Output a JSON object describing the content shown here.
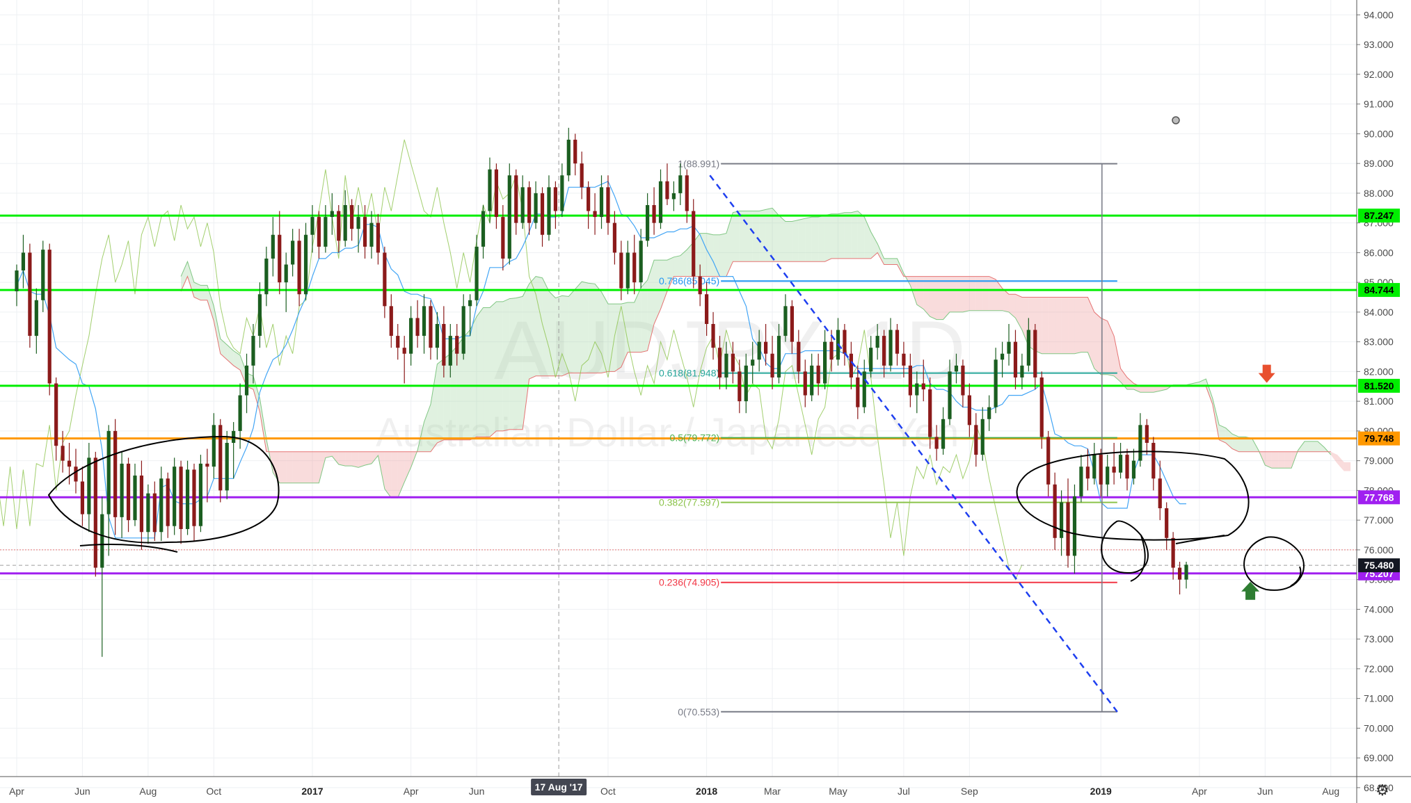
{
  "chart_data": {
    "type": "candlestick",
    "watermark": {
      "symbol": "AUDJPY, 1D",
      "name": "Australian Dollar / Japanese Yen"
    },
    "y_axis": {
      "side": "right",
      "range": [
        67.6,
        94.4
      ],
      "ticks": [
        "68.000",
        "69.000",
        "70.000",
        "71.000",
        "72.000",
        "73.000",
        "74.000",
        "75.000",
        "76.000",
        "77.000",
        "78.000",
        "79.000",
        "80.000",
        "81.000",
        "82.000",
        "83.000",
        "84.000",
        "85.000",
        "86.000",
        "87.000",
        "88.000",
        "89.000",
        "90.000",
        "91.000",
        "92.000",
        "93.000",
        "94.000"
      ]
    },
    "x_axis": {
      "ticks": [
        {
          "label": "Apr",
          "t": 0.0
        },
        {
          "label": "Jun",
          "t": 2.0
        },
        {
          "label": "Aug",
          "t": 4.0
        },
        {
          "label": "Oct",
          "t": 6.0
        },
        {
          "label": "2017",
          "t": 9.0
        },
        {
          "label": "Apr",
          "t": 12.0
        },
        {
          "label": "Jun",
          "t": 14.0
        },
        {
          "label": "Oct",
          "t": 18.0
        },
        {
          "label": "2018",
          "t": 21.0
        },
        {
          "label": "Mar",
          "t": 23.0
        },
        {
          "label": "May",
          "t": 25.0
        },
        {
          "label": "Jul",
          "t": 27.0
        },
        {
          "label": "Sep",
          "t": 29.0
        },
        {
          "label": "2019",
          "t": 33.0
        },
        {
          "label": "Apr",
          "t": 36.0
        },
        {
          "label": "Jun",
          "t": 38.0
        },
        {
          "label": "Aug",
          "t": 40.0
        }
      ],
      "crosshair": {
        "label": "17 Aug '17",
        "t": 16.5
      }
    },
    "horizontal_lines": [
      {
        "value": 87.247,
        "label": "87.247",
        "color": "#00ee00"
      },
      {
        "value": 84.744,
        "label": "84.744",
        "color": "#00ee00"
      },
      {
        "value": 81.52,
        "label": "81.520",
        "color": "#00ee00"
      },
      {
        "value": 79.748,
        "label": "79.748",
        "color": "#ff9800"
      },
      {
        "value": 77.768,
        "label": "77.768",
        "color": "#a020f0"
      },
      {
        "value": 75.207,
        "label": "75.207",
        "color": "#a020f0"
      }
    ],
    "current_price": {
      "value": 75.48,
      "label": "75.480"
    },
    "fibonacci": {
      "t_start": 20.8,
      "t_end": 33.5,
      "levels": [
        {
          "label": "1(88.991)",
          "value": 88.991,
          "color": "#787b86"
        },
        {
          "label": "0.786(85.045)",
          "value": 85.045,
          "color": "#2196f3"
        },
        {
          "label": "0.618(81.948)",
          "value": 81.948,
          "color": "#26a69a"
        },
        {
          "label": "0.5(79.772)",
          "value": 79.772,
          "color": "#4caf50"
        },
        {
          "label": "0.382(77.597)",
          "value": 77.597,
          "color": "#8bc34a"
        },
        {
          "label": "0.236(74.905)",
          "value": 74.905,
          "color": "#f23645"
        },
        {
          "label": "0(70.553)",
          "value": 70.553,
          "color": "#787b86"
        }
      ]
    },
    "trendline": {
      "from": {
        "t": 21.1,
        "v": 88.6
      },
      "to": {
        "t": 33.5,
        "v": 70.55
      },
      "color": "#1e3ff0",
      "style": "dashed"
    },
    "annotations": {
      "arrow_down": {
        "t": 38.05,
        "v": 81.9,
        "color": "#e8502f"
      },
      "arrow_up": {
        "t": 37.55,
        "v": 74.6,
        "color": "#2e7d32"
      }
    },
    "ohlc_approx": [
      [
        0.0,
        84.7,
        85.6,
        84.2,
        85.4
      ],
      [
        0.2,
        85.4,
        86.6,
        84.8,
        86.0
      ],
      [
        0.4,
        86.0,
        86.3,
        82.8,
        83.2
      ],
      [
        0.6,
        83.2,
        84.8,
        82.6,
        84.4
      ],
      [
        0.8,
        84.4,
        86.4,
        84.0,
        86.1
      ],
      [
        1.0,
        86.1,
        86.3,
        81.2,
        81.6
      ],
      [
        1.2,
        81.6,
        81.8,
        79.0,
        79.5
      ],
      [
        1.4,
        79.5,
        80.0,
        78.6,
        79.0
      ],
      [
        1.6,
        79.0,
        79.6,
        78.2,
        78.8
      ],
      [
        1.8,
        78.8,
        79.4,
        77.9,
        78.3
      ],
      [
        2.0,
        78.3,
        78.8,
        76.8,
        77.2
      ],
      [
        2.2,
        77.2,
        79.6,
        76.6,
        79.1
      ],
      [
        2.4,
        79.1,
        79.3,
        75.1,
        75.4
      ],
      [
        2.6,
        75.4,
        77.8,
        72.4,
        77.2
      ],
      [
        2.8,
        77.2,
        80.2,
        75.8,
        80.0
      ],
      [
        3.0,
        80.0,
        80.4,
        76.5,
        77.1
      ],
      [
        3.2,
        77.1,
        79.3,
        76.4,
        78.9
      ],
      [
        3.4,
        78.9,
        79.1,
        76.6,
        77.0
      ],
      [
        3.6,
        77.0,
        78.9,
        76.8,
        78.5
      ],
      [
        3.8,
        78.5,
        79.0,
        76.0,
        76.6
      ],
      [
        4.0,
        76.6,
        78.2,
        76.2,
        77.9
      ],
      [
        4.2,
        77.9,
        78.3,
        76.3,
        76.6
      ],
      [
        4.4,
        76.6,
        78.8,
        76.3,
        78.4
      ],
      [
        4.6,
        78.4,
        78.6,
        76.4,
        76.8
      ],
      [
        4.8,
        76.8,
        79.1,
        76.5,
        78.8
      ],
      [
        5.0,
        78.8,
        79.0,
        76.2,
        76.7
      ],
      [
        5.2,
        76.7,
        79.0,
        76.5,
        78.7
      ],
      [
        5.4,
        78.7,
        78.9,
        76.3,
        76.8
      ],
      [
        5.6,
        76.8,
        79.2,
        76.6,
        78.9
      ],
      [
        5.8,
        78.9,
        79.4,
        77.6,
        78.8
      ],
      [
        6.0,
        78.8,
        80.6,
        78.4,
        80.2
      ],
      [
        6.2,
        80.2,
        80.4,
        77.6,
        78.0
      ],
      [
        6.4,
        78.0,
        80.0,
        77.7,
        79.6
      ],
      [
        6.6,
        79.6,
        80.3,
        78.4,
        80.0
      ],
      [
        6.8,
        80.0,
        81.6,
        79.4,
        81.2
      ],
      [
        7.0,
        81.2,
        82.6,
        80.6,
        82.2
      ],
      [
        7.2,
        82.2,
        83.6,
        81.6,
        83.2
      ],
      [
        7.4,
        83.2,
        85.0,
        82.8,
        84.6
      ],
      [
        7.6,
        84.6,
        86.2,
        84.2,
        85.8
      ],
      [
        7.8,
        85.8,
        87.2,
        85.2,
        86.6
      ],
      [
        8.0,
        86.6,
        87.4,
        84.6,
        85.0
      ],
      [
        8.2,
        85.0,
        86.0,
        84.0,
        85.6
      ],
      [
        8.4,
        85.6,
        86.8,
        85.2,
        86.4
      ],
      [
        8.6,
        86.4,
        86.8,
        84.2,
        84.6
      ],
      [
        8.8,
        84.6,
        87.0,
        84.4,
        86.6
      ],
      [
        9.0,
        86.6,
        87.6,
        86.0,
        87.2
      ],
      [
        9.2,
        87.2,
        87.4,
        85.8,
        86.2
      ],
      [
        9.4,
        86.2,
        87.6,
        86.0,
        87.2
      ],
      [
        9.6,
        87.2,
        88.0,
        86.6,
        87.4
      ],
      [
        9.8,
        87.4,
        87.6,
        86.0,
        86.4
      ],
      [
        10.0,
        86.4,
        88.1,
        86.2,
        87.6
      ],
      [
        10.2,
        87.6,
        87.8,
        86.4,
        86.8
      ],
      [
        10.4,
        86.8,
        87.6,
        86.0,
        87.2
      ],
      [
        10.6,
        87.2,
        87.6,
        85.8,
        86.2
      ],
      [
        10.8,
        86.2,
        87.4,
        85.8,
        87.0
      ],
      [
        11.0,
        87.0,
        87.3,
        85.6,
        86.0
      ],
      [
        11.2,
        86.0,
        86.2,
        83.8,
        84.2
      ],
      [
        11.4,
        84.2,
        84.6,
        82.8,
        83.2
      ],
      [
        11.6,
        83.2,
        83.6,
        82.4,
        82.8
      ],
      [
        11.8,
        82.8,
        83.2,
        81.6,
        82.6
      ],
      [
        12.0,
        82.6,
        84.2,
        82.2,
        83.8
      ],
      [
        12.2,
        83.8,
        84.4,
        82.8,
        83.2
      ],
      [
        12.4,
        83.2,
        84.6,
        82.6,
        84.2
      ],
      [
        12.6,
        84.2,
        84.4,
        82.4,
        82.8
      ],
      [
        12.8,
        82.8,
        84.0,
        82.4,
        83.6
      ],
      [
        13.0,
        83.6,
        84.2,
        81.8,
        82.2
      ],
      [
        13.2,
        82.2,
        83.6,
        81.8,
        83.2
      ],
      [
        13.4,
        83.2,
        83.6,
        82.2,
        82.6
      ],
      [
        13.6,
        82.6,
        84.6,
        82.4,
        84.2
      ],
      [
        13.8,
        84.2,
        84.6,
        83.2,
        84.4
      ],
      [
        14.0,
        84.4,
        86.6,
        84.2,
        86.2
      ],
      [
        14.2,
        86.2,
        87.6,
        85.8,
        87.4
      ],
      [
        14.4,
        87.4,
        89.2,
        87.0,
        88.8
      ],
      [
        14.6,
        88.8,
        89.0,
        86.8,
        87.2
      ],
      [
        14.8,
        87.2,
        87.6,
        85.4,
        85.8
      ],
      [
        15.0,
        85.8,
        89.0,
        85.6,
        88.6
      ],
      [
        15.2,
        88.6,
        88.8,
        86.6,
        87.0
      ],
      [
        15.4,
        87.0,
        88.6,
        86.8,
        88.2
      ],
      [
        15.6,
        88.2,
        88.4,
        86.6,
        87.0
      ],
      [
        15.8,
        87.0,
        88.4,
        86.8,
        88.0
      ],
      [
        16.0,
        88.0,
        88.2,
        86.2,
        86.6
      ],
      [
        16.2,
        86.6,
        88.6,
        86.4,
        88.2
      ],
      [
        16.4,
        88.2,
        88.4,
        86.8,
        87.4
      ],
      [
        16.6,
        87.4,
        89.0,
        87.2,
        88.6
      ],
      [
        16.8,
        88.6,
        90.2,
        88.4,
        89.8
      ],
      [
        17.0,
        89.8,
        90.0,
        88.6,
        89.0
      ],
      [
        17.2,
        89.0,
        89.4,
        87.8,
        88.2
      ],
      [
        17.4,
        88.2,
        88.4,
        86.8,
        87.4
      ],
      [
        17.6,
        87.4,
        88.0,
        86.6,
        87.2
      ],
      [
        17.8,
        87.2,
        88.6,
        86.8,
        88.2
      ],
      [
        18.0,
        88.2,
        88.6,
        86.6,
        87.0
      ],
      [
        18.2,
        87.0,
        87.4,
        85.6,
        86.0
      ],
      [
        18.4,
        86.0,
        86.4,
        84.4,
        84.8
      ],
      [
        18.6,
        84.8,
        86.4,
        84.6,
        86.0
      ],
      [
        18.8,
        86.0,
        86.6,
        84.6,
        85.0
      ],
      [
        19.0,
        85.0,
        86.8,
        84.8,
        86.4
      ],
      [
        19.2,
        86.4,
        88.0,
        86.2,
        87.6
      ],
      [
        19.4,
        87.6,
        88.2,
        86.6,
        87.0
      ],
      [
        19.6,
        87.0,
        88.8,
        86.8,
        88.4
      ],
      [
        19.8,
        88.4,
        89.0,
        87.6,
        87.8
      ],
      [
        20.0,
        87.8,
        88.4,
        87.4,
        88.0
      ],
      [
        20.2,
        88.0,
        89.0,
        87.6,
        88.6
      ],
      [
        20.4,
        88.6,
        88.8,
        87.0,
        87.4
      ],
      [
        20.6,
        87.4,
        87.8,
        84.8,
        85.2
      ],
      [
        20.8,
        85.2,
        85.6,
        84.2,
        84.6
      ],
      [
        21.0,
        84.6,
        85.0,
        83.2,
        83.6
      ],
      [
        21.2,
        83.6,
        84.0,
        82.4,
        82.8
      ],
      [
        21.4,
        82.8,
        83.2,
        81.4,
        81.8
      ],
      [
        21.6,
        81.8,
        83.0,
        81.4,
        82.6
      ],
      [
        21.8,
        82.6,
        83.0,
        81.6,
        82.0
      ],
      [
        22.0,
        82.0,
        82.4,
        80.6,
        81.0
      ],
      [
        22.2,
        81.0,
        82.6,
        80.6,
        82.2
      ],
      [
        22.4,
        82.2,
        83.0,
        81.6,
        82.4
      ],
      [
        22.6,
        82.4,
        83.4,
        82.0,
        83.0
      ],
      [
        22.8,
        83.0,
        83.6,
        82.2,
        82.6
      ],
      [
        23.0,
        82.6,
        83.2,
        81.4,
        81.8
      ],
      [
        23.2,
        81.8,
        83.6,
        81.6,
        83.2
      ],
      [
        23.4,
        83.2,
        84.6,
        83.0,
        84.2
      ],
      [
        23.6,
        84.2,
        84.4,
        82.6,
        83.0
      ],
      [
        23.8,
        83.0,
        83.4,
        81.6,
        82.0
      ],
      [
        24.0,
        82.0,
        82.4,
        80.8,
        81.2
      ],
      [
        24.2,
        81.2,
        82.6,
        81.0,
        82.2
      ],
      [
        24.4,
        82.2,
        82.6,
        81.2,
        81.6
      ],
      [
        24.6,
        81.6,
        83.4,
        81.4,
        83.0
      ],
      [
        24.8,
        83.0,
        83.4,
        82.0,
        82.4
      ],
      [
        25.0,
        82.4,
        83.8,
        82.2,
        83.4
      ],
      [
        25.2,
        83.4,
        83.6,
        82.2,
        82.6
      ],
      [
        25.4,
        82.6,
        83.0,
        81.4,
        81.8
      ],
      [
        25.6,
        81.8,
        82.2,
        80.4,
        80.8
      ],
      [
        25.8,
        80.8,
        82.4,
        80.6,
        82.0
      ],
      [
        26.0,
        82.0,
        83.2,
        81.8,
        82.8
      ],
      [
        26.2,
        82.8,
        83.6,
        82.4,
        83.2
      ],
      [
        26.4,
        83.2,
        83.4,
        81.8,
        82.2
      ],
      [
        26.6,
        82.2,
        83.8,
        82.0,
        83.4
      ],
      [
        26.8,
        83.4,
        83.6,
        82.2,
        82.6
      ],
      [
        27.0,
        82.6,
        83.0,
        81.8,
        82.2
      ],
      [
        27.2,
        82.2,
        82.6,
        80.8,
        81.2
      ],
      [
        27.4,
        81.2,
        82.0,
        80.6,
        81.6
      ],
      [
        27.6,
        81.6,
        82.4,
        81.0,
        81.4
      ],
      [
        27.8,
        81.4,
        81.8,
        79.4,
        79.8
      ],
      [
        28.0,
        79.8,
        80.2,
        79.0,
        79.4
      ],
      [
        28.2,
        79.4,
        80.8,
        79.2,
        80.4
      ],
      [
        28.4,
        80.4,
        82.4,
        80.2,
        82.0
      ],
      [
        28.6,
        82.0,
        82.6,
        81.6,
        82.2
      ],
      [
        28.8,
        82.2,
        82.4,
        80.8,
        81.2
      ],
      [
        29.0,
        81.2,
        81.6,
        79.8,
        80.2
      ],
      [
        29.2,
        80.2,
        80.6,
        78.8,
        79.2
      ],
      [
        29.4,
        79.2,
        80.8,
        79.0,
        80.4
      ],
      [
        29.6,
        80.4,
        81.2,
        80.0,
        80.8
      ],
      [
        29.8,
        80.8,
        82.8,
        80.6,
        82.4
      ],
      [
        30.0,
        82.4,
        83.0,
        81.8,
        82.6
      ],
      [
        30.2,
        82.6,
        83.6,
        82.2,
        83.0
      ],
      [
        30.4,
        83.0,
        83.4,
        81.4,
        81.8
      ],
      [
        30.6,
        81.8,
        82.6,
        81.4,
        82.2
      ],
      [
        30.8,
        82.2,
        83.8,
        82.0,
        83.4
      ],
      [
        31.0,
        83.4,
        83.6,
        81.4,
        81.8
      ],
      [
        31.2,
        81.8,
        82.0,
        79.4,
        79.8
      ],
      [
        31.4,
        79.8,
        80.0,
        77.8,
        78.2
      ],
      [
        31.6,
        78.2,
        78.6,
        76.0,
        76.4
      ],
      [
        31.8,
        76.4,
        78.0,
        75.8,
        77.6
      ],
      [
        32.0,
        77.6,
        78.4,
        75.4,
        75.8
      ],
      [
        32.2,
        75.8,
        78.2,
        75.2,
        77.8
      ],
      [
        32.4,
        77.8,
        79.2,
        77.6,
        78.8
      ],
      [
        32.6,
        78.8,
        79.4,
        78.0,
        78.4
      ],
      [
        32.8,
        78.4,
        79.6,
        78.2,
        79.2
      ],
      [
        33.0,
        79.2,
        79.4,
        77.8,
        78.2
      ],
      [
        33.2,
        78.2,
        79.2,
        77.8,
        78.8
      ],
      [
        33.4,
        78.8,
        79.6,
        78.2,
        78.6
      ],
      [
        33.6,
        78.6,
        79.6,
        78.4,
        79.2
      ],
      [
        33.8,
        79.2,
        79.4,
        78.0,
        78.4
      ],
      [
        34.0,
        78.4,
        79.4,
        78.2,
        79.0
      ],
      [
        34.2,
        79.0,
        80.6,
        78.8,
        80.2
      ],
      [
        34.4,
        80.2,
        80.4,
        79.2,
        79.6
      ],
      [
        34.6,
        79.6,
        79.8,
        78.0,
        78.4
      ],
      [
        34.8,
        78.4,
        79.0,
        77.0,
        77.4
      ],
      [
        35.0,
        77.4,
        77.6,
        76.0,
        76.4
      ],
      [
        35.2,
        76.4,
        76.6,
        75.0,
        75.4
      ],
      [
        35.4,
        75.4,
        75.6,
        74.5,
        75.0
      ],
      [
        35.6,
        75.0,
        75.6,
        74.7,
        75.5
      ]
    ]
  }
}
